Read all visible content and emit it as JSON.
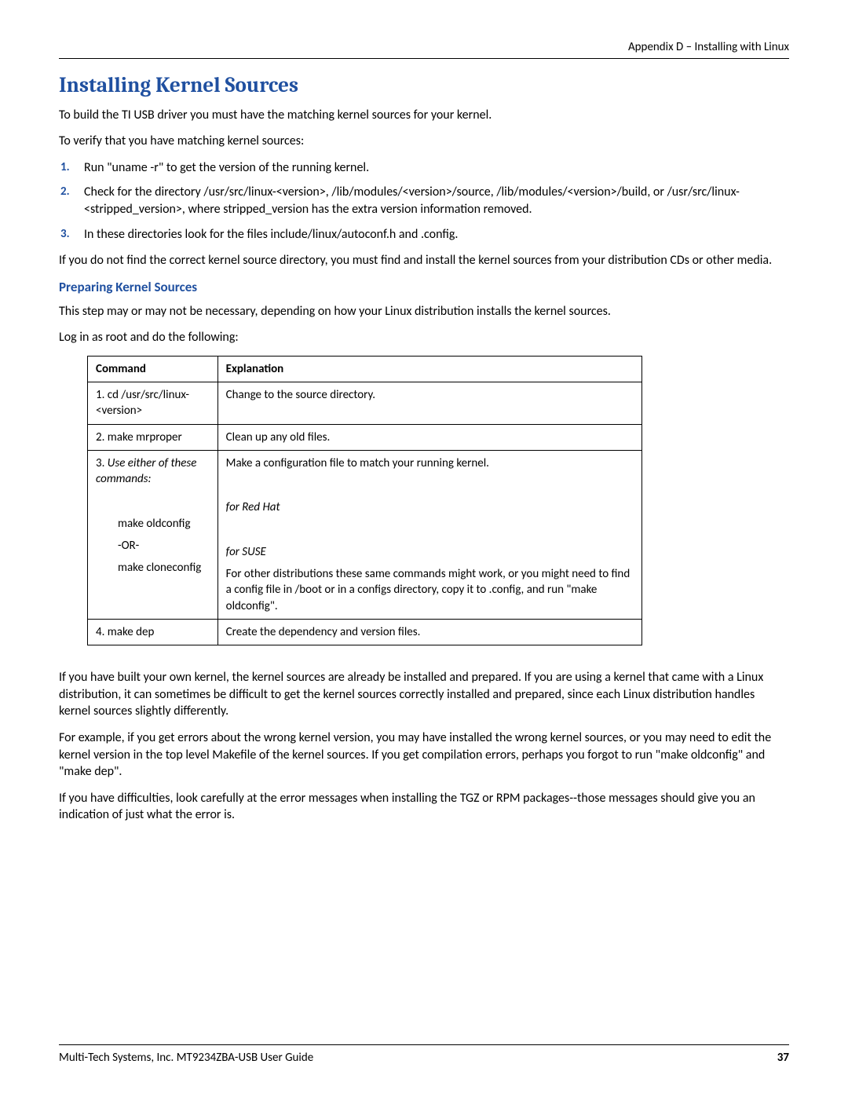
{
  "header": {
    "right": "Appendix D – Installing with Linux"
  },
  "title": "Installing Kernel Sources",
  "p1": "To build the TI USB driver you must have the matching kernel sources for your kernel.",
  "p2": "To verify that you have matching kernel sources:",
  "steps": {
    "s1": "Run \"uname -r\" to get the version of the running kernel.",
    "s2": "Check for the directory /usr/src/linux-<version>, /lib/modules/<version>/source, /lib/modules/<version>/build, or /usr/src/linux-<stripped_version>, where stripped_version has the extra version information removed.",
    "s3": "In these directories look for the files include/linux/autoconf.h and .config."
  },
  "p3": "If you do not find the correct kernel source directory, you must find and install the kernel sources from your distribution CDs or other media.",
  "sub1": "Preparing Kernel Sources",
  "p4": "This step may or may not be necessary, depending on how your Linux distribution installs the kernel sources.",
  "p5": "Log in as root and do the following:",
  "table": {
    "h1": "Command",
    "h2": "Explanation",
    "r1c1": "1. cd /usr/src/linux-<version>",
    "r1c2": "Change to the source directory.",
    "r2c1": "2. make mrproper",
    "r2c2": "Clean up any old files.",
    "r3a": "3. ",
    "r3a_italic": "Use either of these commands:",
    "r3b": "make oldconfig",
    "r3c": "-OR-",
    "r3d": "make cloneconfig",
    "r3e1": "Make a configuration file to match your running kernel.",
    "r3e2": "for Red Hat",
    "r3e3": "for SUSE",
    "r3e4": "For other distributions these same commands might work, or you might need to find a config file in /boot or in a configs directory, copy it to .config, and run \"make oldconfig\".",
    "r4c1": "4. make dep",
    "r4c2": "Create the dependency and version files."
  },
  "p6": "If you have built your own kernel, the kernel sources are already be installed and prepared. If you are using a kernel that came with a Linux distribution, it can sometimes be difficult to get the kernel sources correctly installed and prepared, since each Linux distribution handles kernel sources slightly differently.",
  "p7": "For example, if you get errors about the wrong kernel version, you may have installed the wrong kernel sources, or you may need to edit the kernel version in the top level Makefile of the kernel sources.  If you get compilation errors, perhaps you forgot to run \"make oldconfig\" and \"make dep\".",
  "p8": "If you have difficulties, look carefully at the error messages when installing the TGZ or RPM packages--those messages should give you an indication of just what the error is.",
  "footer": {
    "left": "Multi-Tech Systems, Inc. MT9234ZBA-USB User Guide",
    "page": "37"
  }
}
